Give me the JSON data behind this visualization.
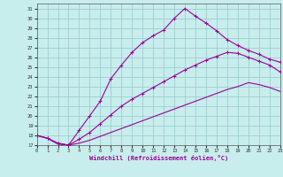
{
  "xlabel": "Windchill (Refroidissement éolien,°C)",
  "bg_color": "#c8eded",
  "grid_color": "#9ecece",
  "line_color": "#990099",
  "xlim": [
    0,
    23
  ],
  "ylim": [
    17,
    31.5
  ],
  "xticks": [
    0,
    1,
    2,
    3,
    4,
    5,
    6,
    7,
    8,
    9,
    10,
    11,
    12,
    13,
    14,
    15,
    16,
    17,
    18,
    19,
    20,
    21,
    22,
    23
  ],
  "yticks": [
    17,
    18,
    19,
    20,
    21,
    22,
    23,
    24,
    25,
    26,
    27,
    28,
    29,
    30,
    31
  ],
  "curve1_x": [
    0,
    1,
    2,
    3,
    4,
    5,
    6,
    7,
    8,
    9,
    10,
    11,
    12,
    13,
    14,
    15,
    16,
    17,
    18,
    19,
    20,
    21,
    22,
    23
  ],
  "curve1_y": [
    18.0,
    17.7,
    17.1,
    17.0,
    17.2,
    17.5,
    17.9,
    18.3,
    18.7,
    19.1,
    19.5,
    19.9,
    20.3,
    20.7,
    21.1,
    21.5,
    21.9,
    22.3,
    22.7,
    23.0,
    23.4,
    23.2,
    22.9,
    22.5
  ],
  "curve2_x": [
    0,
    1,
    2,
    3,
    4,
    5,
    6,
    7,
    8,
    9,
    10,
    11,
    12,
    13,
    14,
    15,
    16,
    17,
    18,
    19,
    20,
    21,
    22,
    23
  ],
  "curve2_y": [
    18.0,
    17.7,
    17.2,
    17.0,
    17.6,
    18.3,
    19.2,
    20.1,
    21.0,
    21.7,
    22.3,
    22.9,
    23.5,
    24.1,
    24.7,
    25.2,
    25.7,
    26.1,
    26.5,
    26.4,
    26.0,
    25.6,
    25.2,
    24.5
  ],
  "curve3_x": [
    0,
    1,
    2,
    3,
    4,
    5,
    6,
    7,
    8,
    9,
    10,
    11,
    12,
    13,
    14,
    15,
    16,
    17,
    18,
    19,
    20,
    21,
    22,
    23
  ],
  "curve3_y": [
    18.0,
    17.7,
    17.2,
    17.0,
    18.5,
    20.0,
    21.5,
    23.8,
    25.2,
    26.5,
    27.5,
    28.2,
    28.8,
    30.0,
    31.0,
    30.2,
    29.5,
    28.7,
    27.8,
    27.2,
    26.7,
    26.3,
    25.8,
    25.5
  ],
  "curve3_has_markers": true,
  "curve2_has_markers": true,
  "curve1_has_markers": false
}
